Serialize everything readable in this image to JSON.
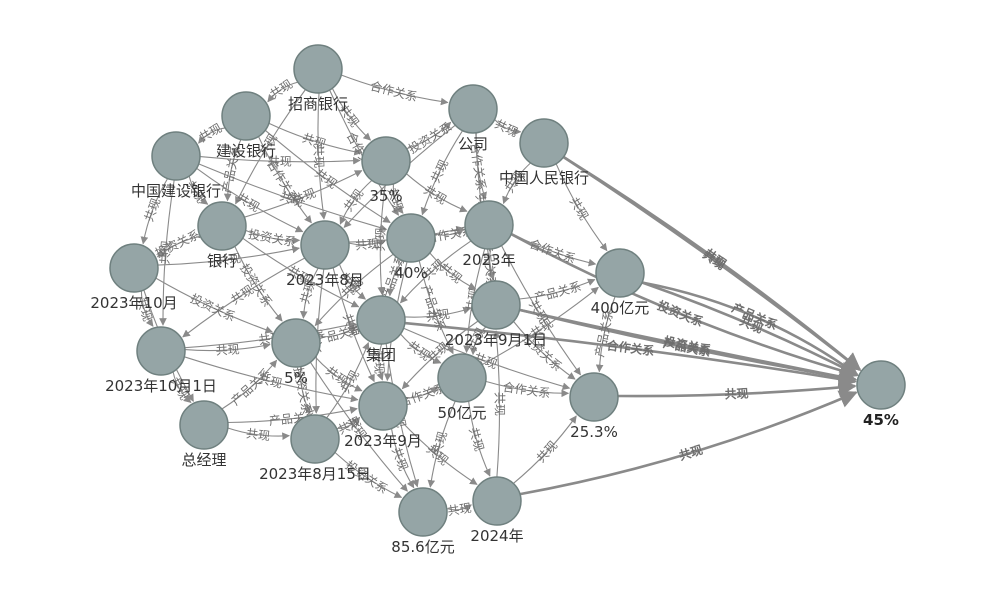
{
  "graph": {
    "nodes": [
      {
        "id": "招商银行",
        "label": "招商银行"
      },
      {
        "id": "建设银行",
        "label": "建设银行"
      },
      {
        "id": "公司",
        "label": "公司"
      },
      {
        "id": "中国人民银行",
        "label": "中国人民银行"
      },
      {
        "id": "中国建设银行",
        "label": "中国建设银行"
      },
      {
        "id": "35%",
        "label": "35%"
      },
      {
        "id": "银行",
        "label": "银行"
      },
      {
        "id": "2023年8月",
        "label": "2023年8月"
      },
      {
        "id": "40%",
        "label": "40%"
      },
      {
        "id": "2023年",
        "label": "2023年"
      },
      {
        "id": "2023年10月",
        "label": "2023年10月"
      },
      {
        "id": "400亿元",
        "label": "400亿元"
      },
      {
        "id": "2023年9月1日",
        "label": "2023年9月1日"
      },
      {
        "id": "集团",
        "label": "集团"
      },
      {
        "id": "2023年10月1日",
        "label": "2023年10月1日"
      },
      {
        "id": "5%",
        "label": "5%"
      },
      {
        "id": "50亿元",
        "label": "50亿元"
      },
      {
        "id": "2023年9月",
        "label": "2023年9月"
      },
      {
        "id": "25.3%",
        "label": "25.3%"
      },
      {
        "id": "总经理",
        "label": "总经理"
      },
      {
        "id": "2023年8月15日",
        "label": "2023年8月15日"
      },
      {
        "id": "85.6亿元",
        "label": "85.6亿元"
      },
      {
        "id": "2024年",
        "label": "2024年"
      },
      {
        "id": "45%",
        "label": "45%",
        "bold": true
      }
    ],
    "edges": [
      {
        "source": "中国人民银行",
        "target": "45%",
        "label": "共现"
      },
      {
        "source": "中国人民银行",
        "target": "45%",
        "label": "共现"
      },
      {
        "source": "2023年",
        "target": "45%",
        "label": "投资关系"
      },
      {
        "source": "400亿元",
        "target": "45%",
        "label": "共现"
      },
      {
        "source": "2023年9月1日",
        "target": "45%",
        "label": "产品关系"
      },
      {
        "source": "2023年9月1日",
        "target": "45%",
        "label": "投资关系"
      },
      {
        "source": "集团",
        "target": "45%",
        "label": "合作关系"
      },
      {
        "source": "25.3%",
        "target": "45%",
        "label": "共现"
      },
      {
        "source": "2024年",
        "target": "45%",
        "label": "共现"
      },
      {
        "source": "400亿元",
        "target": "45%",
        "label": "产品关系"
      },
      {
        "source": "招商银行",
        "target": "公司",
        "label": "合作关系"
      },
      {
        "source": "招商银行",
        "target": "35%",
        "label": "共现"
      },
      {
        "source": "建设银行",
        "target": "35%",
        "label": "共现"
      },
      {
        "source": "中国建设银行",
        "target": "2023年8月",
        "label": "共现"
      },
      {
        "source": "银行",
        "target": "2023年8月",
        "label": "投资关系"
      },
      {
        "source": "2023年10月",
        "target": "2023年8月",
        "label": "共现"
      },
      {
        "source": "2023年8月",
        "target": "40%",
        "label": "共现"
      },
      {
        "source": "40%",
        "target": "2023年",
        "label": "合作关系"
      },
      {
        "source": "2023年",
        "target": "400亿元",
        "label": "合作关系"
      },
      {
        "source": "2023年9月1日",
        "target": "400亿元",
        "label": "产品关系"
      },
      {
        "source": "集团",
        "target": "2023年9月1日",
        "label": "共现"
      },
      {
        "source": "5%",
        "target": "集团",
        "label": "产品关系"
      },
      {
        "source": "2023年10月1日",
        "target": "5%",
        "label": "共现"
      },
      {
        "source": "总经理",
        "target": "2023年9月",
        "label": "产品关系"
      },
      {
        "source": "2023年8月15日",
        "target": "2023年9月",
        "label": "共现"
      },
      {
        "source": "2023年9月",
        "target": "50亿元",
        "label": "合作关系"
      },
      {
        "source": "50亿元",
        "target": "25.3%",
        "label": "合作关系"
      },
      {
        "source": "85.6亿元",
        "target": "2024年",
        "label": "共现"
      },
      {
        "source": "2024年",
        "target": "25.3%",
        "label": "共现"
      },
      {
        "source": "35%",
        "target": "公司",
        "label": "投资关系"
      },
      {
        "source": "公司",
        "target": "中国人民银行",
        "label": "共现"
      },
      {
        "source": "35%",
        "target": "2023年",
        "label": "共现"
      },
      {
        "source": "中国人民银行",
        "target": "2023年",
        "label": "共现"
      },
      {
        "source": "建设银行",
        "target": "银行",
        "label": "产品关系"
      },
      {
        "source": "中国建设银行",
        "target": "银行",
        "label": "共现"
      },
      {
        "source": "2023年10月",
        "target": "2023年10月1日",
        "label": "共现"
      },
      {
        "source": "2023年10月1日",
        "target": "总经理",
        "label": "共现"
      },
      {
        "source": "5%",
        "target": "2023年8月15日",
        "label": "投资关系"
      },
      {
        "source": "2023年9月",
        "target": "85.6亿元",
        "label": "共现"
      },
      {
        "source": "集团",
        "target": "2023年9月",
        "label": "共现"
      },
      {
        "source": "40%",
        "target": "集团",
        "label": "产品关系"
      },
      {
        "source": "2023年8月",
        "target": "集团",
        "label": "共现"
      },
      {
        "source": "35%",
        "target": "40%",
        "label": "共现"
      },
      {
        "source": "银行",
        "target": "5%",
        "label": "投资关系"
      },
      {
        "source": "2023年8月",
        "target": "5%",
        "label": "共现"
      },
      {
        "source": "2023年9月1日",
        "target": "50亿元",
        "label": "共现"
      },
      {
        "source": "2023年",
        "target": "2023年9月1日",
        "label": "产品关系"
      },
      {
        "source": "40%",
        "target": "2023年9月1日",
        "label": "共现"
      },
      {
        "source": "招商银行",
        "target": "建设银行",
        "label": "共现"
      },
      {
        "source": "建设银行",
        "target": "中国建设银行",
        "label": "共现"
      },
      {
        "source": "中国建设银行",
        "target": "2023年10月",
        "label": "共现"
      },
      {
        "source": "50亿元",
        "target": "2024年",
        "label": "共现"
      },
      {
        "source": "2023年8月15日",
        "target": "85.6亿元",
        "label": "投资关系"
      },
      {
        "source": "招商银行",
        "target": "2023年8月",
        "label": "共现"
      },
      {
        "source": "建设银行",
        "target": "2023年8月",
        "label": "合作关系"
      },
      {
        "source": "公司",
        "target": "40%",
        "label": "共现"
      },
      {
        "source": "公司",
        "target": "2023年",
        "label": "合作关系"
      },
      {
        "source": "银行",
        "target": "集团",
        "label": "共现"
      },
      {
        "source": "2023年10月",
        "target": "5%",
        "label": "投资关系"
      },
      {
        "source": "2023年10月1日",
        "target": "2023年9月",
        "label": "共现"
      },
      {
        "source": "总经理",
        "target": "5%",
        "label": "产品关系"
      },
      {
        "source": "5%",
        "target": "2023年9月",
        "label": "共现"
      },
      {
        "source": "2023年8月15日",
        "target": "集团",
        "label": "共现"
      },
      {
        "source": "50亿元",
        "target": "85.6亿元",
        "label": "共现"
      },
      {
        "source": "2023年9月1日",
        "target": "25.3%",
        "label": "投资关系"
      },
      {
        "source": "400亿元",
        "target": "25.3%",
        "label": "产品关系"
      },
      {
        "source": "2023年",
        "target": "50亿元",
        "label": "共现"
      },
      {
        "source": "35%",
        "target": "2023年8月",
        "label": "共现"
      },
      {
        "source": "中国人民银行",
        "target": "400亿元",
        "label": "共现"
      },
      {
        "source": "招商银行",
        "target": "40%",
        "label": "合作关系"
      },
      {
        "source": "中国建设银行",
        "target": "2023年10月1日",
        "label": "共现"
      },
      {
        "source": "银行",
        "target": "2023年10月",
        "label": "投资关系"
      },
      {
        "source": "2023年8月",
        "target": "2023年9月",
        "label": "共现"
      },
      {
        "source": "40%",
        "target": "50亿元",
        "label": "产品关系"
      },
      {
        "source": "集团",
        "target": "85.6亿元",
        "label": "共现"
      },
      {
        "source": "5%",
        "target": "85.6亿元",
        "label": "共现"
      },
      {
        "source": "2023年9月",
        "target": "2024年",
        "label": "共现"
      },
      {
        "source": "公司",
        "target": "2023年9月1日",
        "label": "共现"
      },
      {
        "source": "建设银行",
        "target": "40%",
        "label": "共现"
      },
      {
        "source": "中国建设银行",
        "target": "35%",
        "label": "共现"
      },
      {
        "source": "2023年10月1日",
        "target": "集团",
        "label": "共现"
      },
      {
        "source": "总经理",
        "target": "2023年8月15日",
        "label": "共现"
      },
      {
        "source": "集团",
        "target": "50亿元",
        "label": "共现"
      },
      {
        "source": "2023年8月",
        "target": "2023年",
        "label": "共现"
      },
      {
        "source": "银行",
        "target": "35%",
        "label": "共现"
      },
      {
        "source": "40%",
        "target": "5%",
        "label": "共现"
      },
      {
        "source": "2023年9月1日",
        "target": "2023年9月",
        "label": "共现"
      },
      {
        "source": "2023年",
        "target": "25.3%",
        "label": "共现"
      },
      {
        "source": "招商银行",
        "target": "银行",
        "label": "共现"
      },
      {
        "source": "中国建设银行",
        "target": "40%",
        "label": "共现"
      },
      {
        "source": "2023年10月",
        "target": "总经理",
        "label": "共现"
      },
      {
        "source": "2023年8月",
        "target": "2023年8月15日",
        "label": "共现"
      },
      {
        "source": "50亿元",
        "target": "400亿元",
        "label": "共现"
      },
      {
        "source": "集团",
        "target": "25.3%",
        "label": "共现"
      },
      {
        "source": "35%",
        "target": "集团",
        "label": "共现"
      },
      {
        "source": "公司",
        "target": "2023年8月",
        "label": "共现"
      },
      {
        "source": "2023年",
        "target": "集团",
        "label": "共现"
      },
      {
        "source": "2023年8月",
        "target": "2023年10月1日",
        "label": "共现"
      },
      {
        "source": "40%",
        "target": "2023年9月",
        "label": "共现"
      },
      {
        "source": "2024年",
        "target": "2023年9月1日",
        "label": "共现"
      }
    ]
  }
}
